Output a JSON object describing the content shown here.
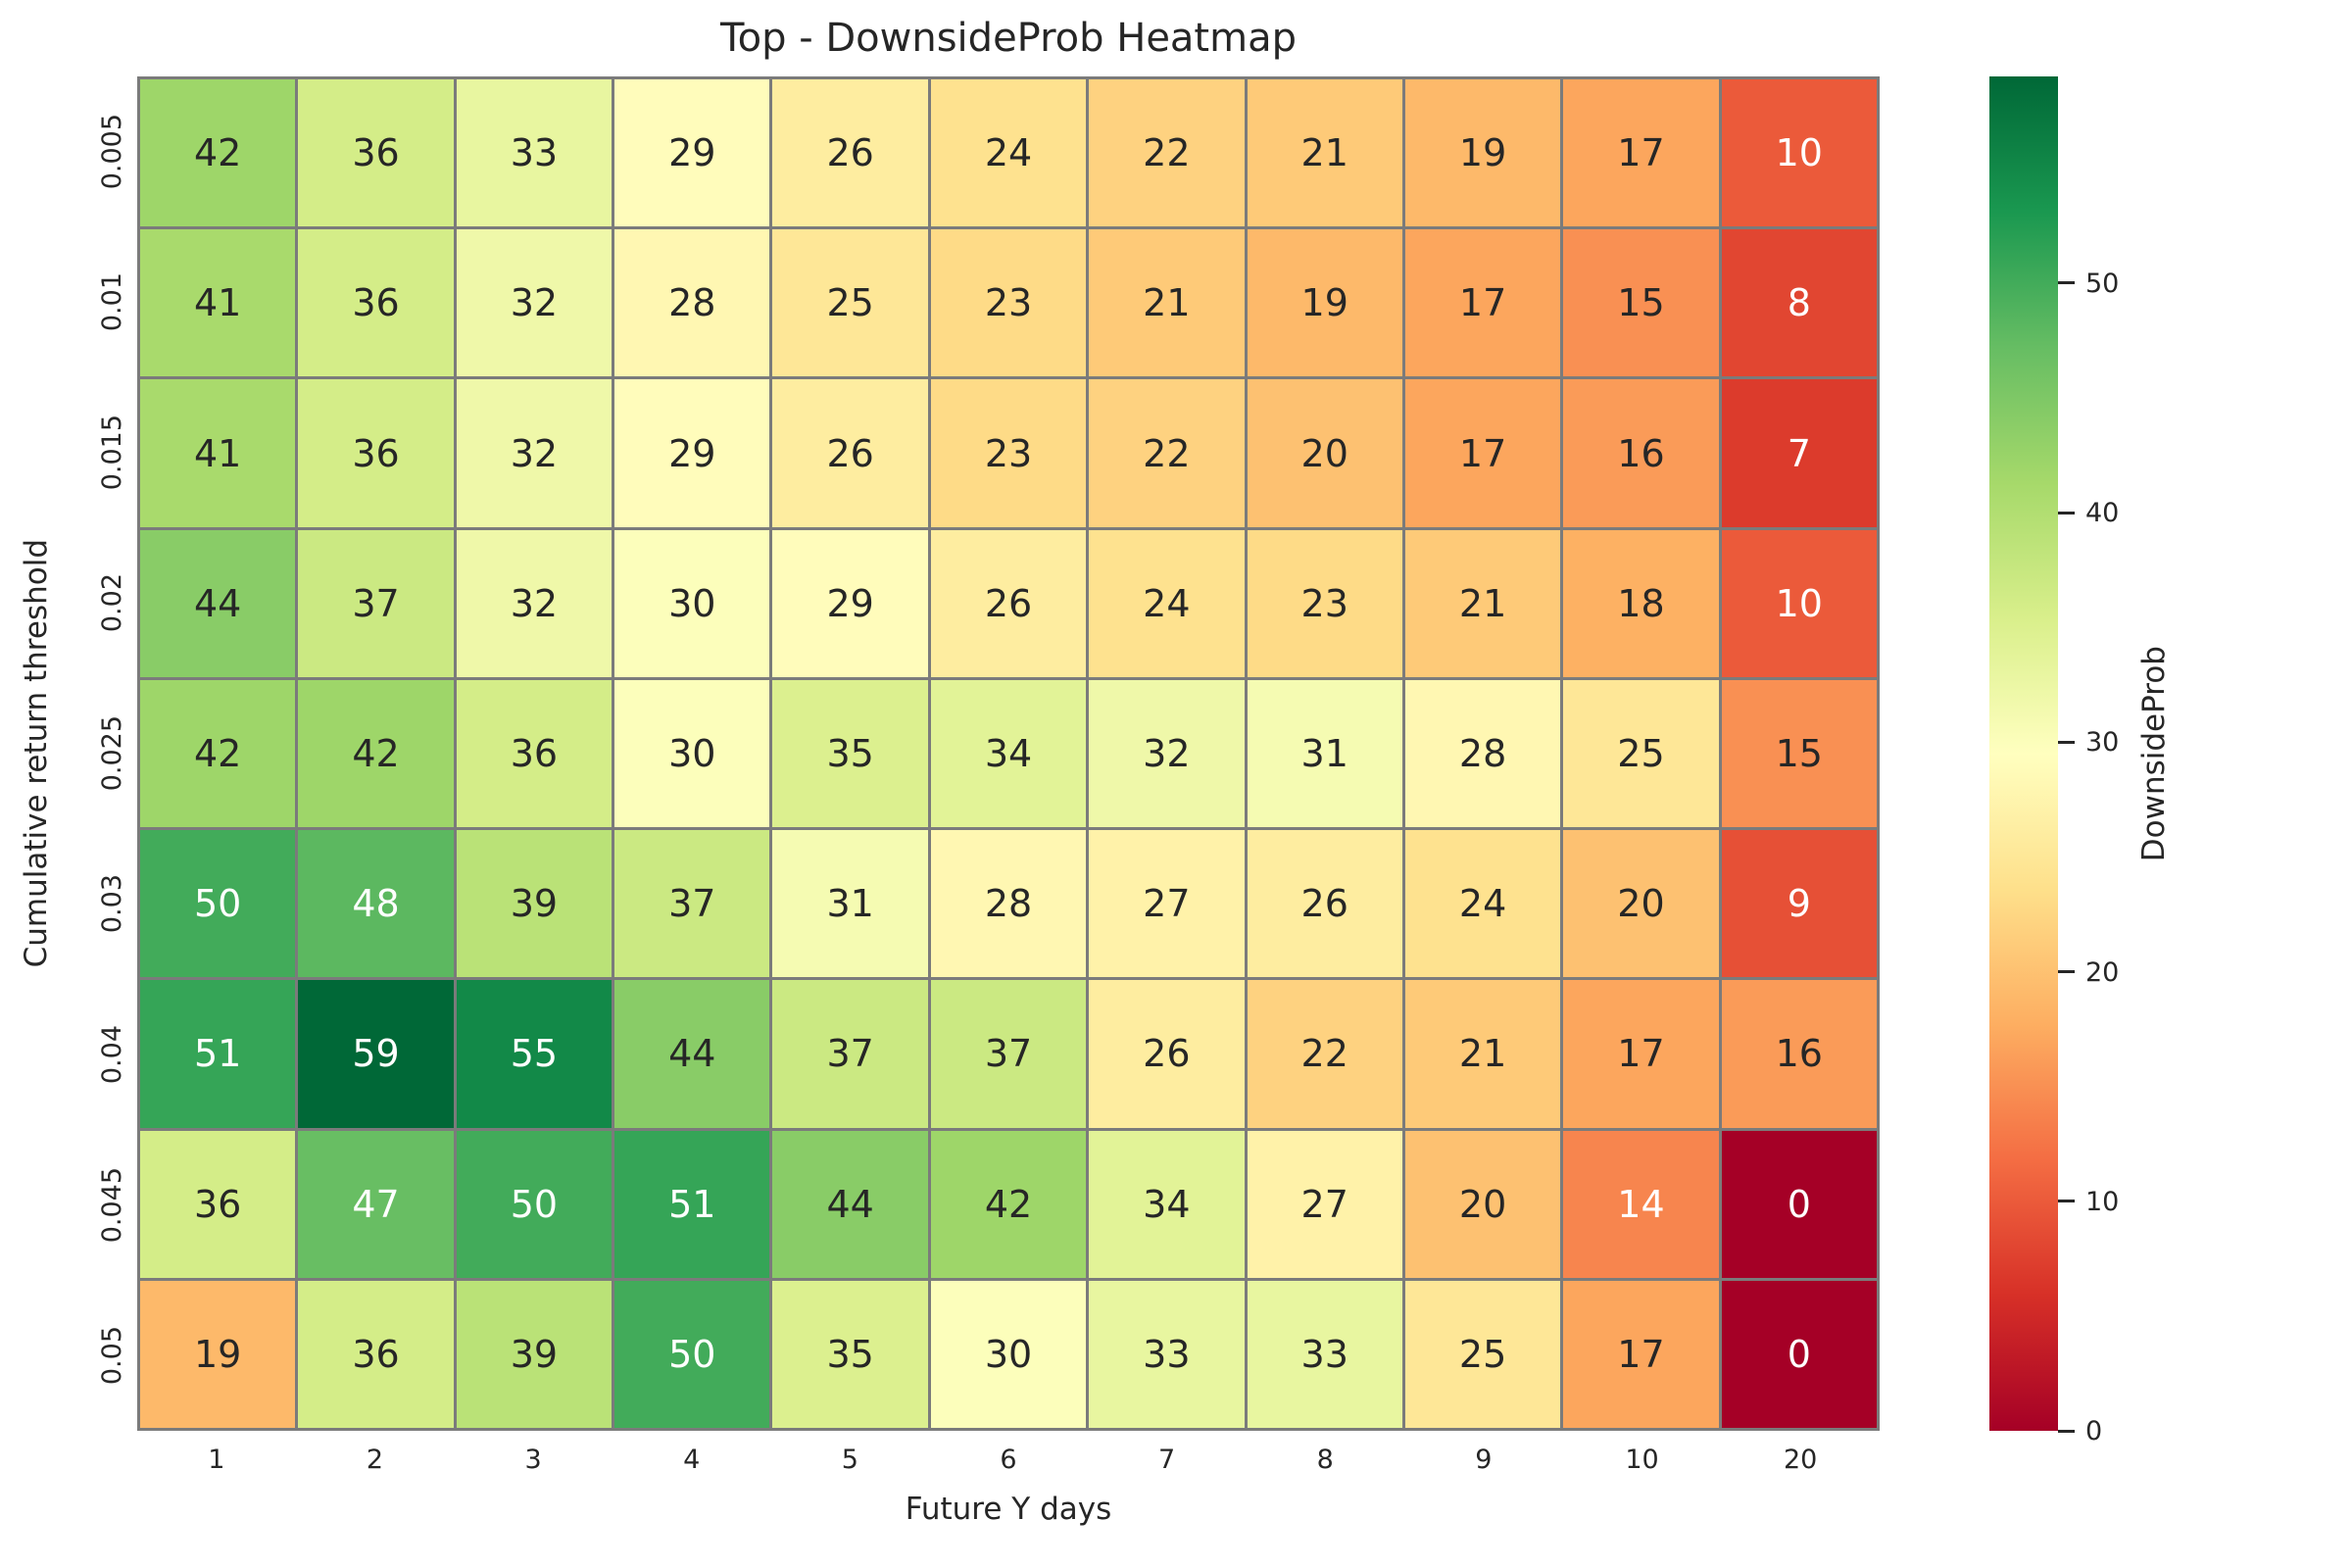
{
  "figure": {
    "background": "#ffffff",
    "grid_line_color": "#7b7b7b",
    "text_color": "#262626",
    "annotation_light_color": "#ffffff"
  },
  "chart_data": {
    "type": "heatmap",
    "title": "Top - DownsideProb Heatmap",
    "xlabel": "Future Y days",
    "ylabel": "Cumulative return threshold",
    "x_tick_labels": [
      "1",
      "2",
      "3",
      "4",
      "5",
      "6",
      "7",
      "8",
      "9",
      "10",
      "20"
    ],
    "y_tick_labels": [
      "0.005",
      "0.01",
      "0.015",
      "0.02",
      "0.025",
      "0.03",
      "0.04",
      "0.045",
      "0.05"
    ],
    "values": [
      [
        42,
        36,
        33,
        29,
        26,
        24,
        22,
        21,
        19,
        17,
        10
      ],
      [
        41,
        36,
        32,
        28,
        25,
        23,
        21,
        19,
        17,
        15,
        8
      ],
      [
        41,
        36,
        32,
        29,
        26,
        23,
        22,
        20,
        17,
        16,
        7
      ],
      [
        44,
        37,
        32,
        30,
        29,
        26,
        24,
        23,
        21,
        18,
        10
      ],
      [
        42,
        42,
        36,
        30,
        35,
        34,
        32,
        31,
        28,
        25,
        15
      ],
      [
        50,
        48,
        39,
        37,
        31,
        28,
        27,
        26,
        24,
        20,
        9
      ],
      [
        51,
        59,
        55,
        44,
        37,
        37,
        26,
        22,
        21,
        17,
        16
      ],
      [
        36,
        47,
        50,
        51,
        44,
        42,
        34,
        27,
        20,
        14,
        0
      ],
      [
        19,
        36,
        39,
        50,
        35,
        30,
        33,
        33,
        25,
        17,
        0
      ]
    ],
    "vmin": 0,
    "vmax": 59,
    "colormap": "RdYlGn",
    "colormap_anchors": [
      "#a50026",
      "#d73027",
      "#f46d43",
      "#fdae61",
      "#fee08b",
      "#ffffbf",
      "#d9ef8b",
      "#a6d96a",
      "#66bd63",
      "#1a9850",
      "#006837"
    ],
    "colorbar": {
      "label": "DownsideProb",
      "ticks": [
        0,
        10,
        20,
        30,
        40,
        50
      ]
    },
    "grid": true,
    "legend_position": "none",
    "annotation_format": "integer"
  }
}
